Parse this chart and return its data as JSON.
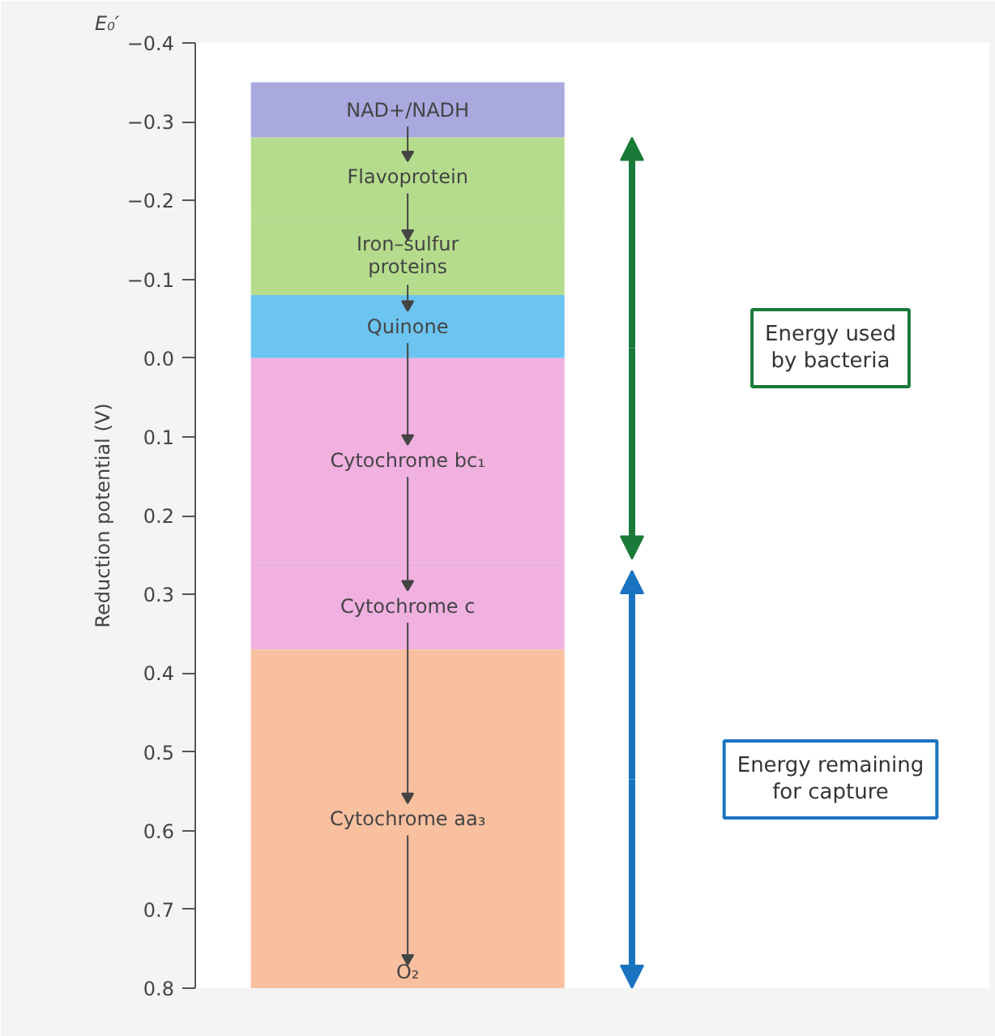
{
  "chart_data": {
    "type": "bar",
    "stacked": true,
    "categories": [
      null
    ],
    "ylabel": "Reduction potential (V)",
    "ylim": [
      0.8,
      -0.4
    ],
    "yticks": [
      {
        "value": -0.4,
        "label": "−0.4"
      },
      {
        "value": -0.3,
        "label": "−0.3"
      },
      {
        "value": -0.2,
        "label": "−0.2"
      },
      {
        "value": -0.1,
        "label": "−0.1"
      },
      {
        "value": 0.0,
        "label": "0.0"
      },
      {
        "value": 0.1,
        "label": "0.1"
      },
      {
        "value": 0.2,
        "label": "0.2"
      },
      {
        "value": 0.3,
        "label": "0.3"
      },
      {
        "value": 0.4,
        "label": "0.4"
      },
      {
        "value": 0.5,
        "label": "0.5"
      },
      {
        "value": 0.6,
        "label": "0.6"
      },
      {
        "value": 0.7,
        "label": "0.7"
      },
      {
        "value": 0.8,
        "label": "0.8"
      }
    ],
    "series": [
      {
        "name": "Quinone",
        "color": "#6cc4f0",
        "values": [
          -0.08
        ]
      },
      {
        "name": "Iron–sulfur\nproteins",
        "color": "#b5dc8c",
        "values": [
          -0.1
        ]
      },
      {
        "name": "Flavoprotein",
        "color": "#b5dc8c",
        "values": [
          -0.1
        ]
      },
      {
        "name": "NAD+/NADH",
        "color": "#a9a9e0",
        "values": [
          -0.07
        ]
      },
      {
        "name": "Cytochrome bc₁",
        "color": "#f0b0e0",
        "values": [
          0.26
        ]
      },
      {
        "name": "Cytochrome c",
        "color": "#f0b0e0",
        "values": [
          0.11
        ]
      },
      {
        "name": "Cytochrome aa₃",
        "color": "#f9c0a0",
        "values": [
          0.43
        ]
      }
    ],
    "annotations": [
      "E₀′",
      "Energy used\nby bacteria",
      "Energy remaining\nfor capture",
      "O₂"
    ]
  }
}
